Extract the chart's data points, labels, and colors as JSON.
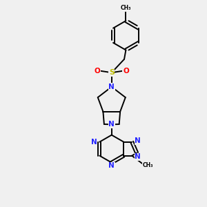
{
  "background_color": "#f0f0f0",
  "bond_color": "#000000",
  "N_color": "#2222ff",
  "S_color": "#bbbb00",
  "O_color": "#ff0000",
  "figsize": [
    3.0,
    3.0
  ],
  "dpi": 100,
  "xlim": [
    0,
    10
  ],
  "ylim": [
    0,
    10
  ]
}
